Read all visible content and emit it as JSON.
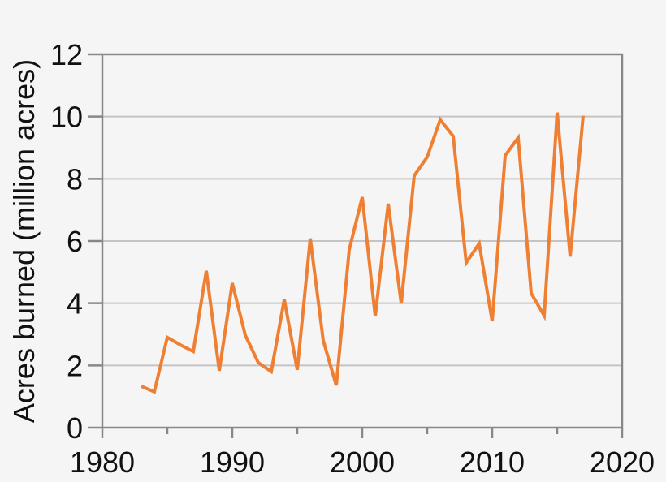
{
  "chart_data": {
    "type": "line",
    "title": "",
    "xlabel": "",
    "ylabel": "Acres burned (million acres)",
    "xlim": [
      1980,
      2020
    ],
    "ylim": [
      0,
      12
    ],
    "xticks": [
      1980,
      1990,
      2000,
      2010,
      2020
    ],
    "xminor_ticks": [
      1985,
      1995,
      2005,
      2015
    ],
    "yticks": [
      0,
      2,
      4,
      6,
      8,
      10,
      12
    ],
    "grid": "horizontal",
    "legend": null,
    "series": [
      {
        "name": "Acres burned",
        "color": "#ee7f33",
        "x": [
          1983,
          1984,
          1985,
          1986,
          1987,
          1988,
          1989,
          1990,
          1991,
          1992,
          1993,
          1994,
          1995,
          1996,
          1997,
          1998,
          1999,
          2000,
          2001,
          2002,
          2003,
          2004,
          2005,
          2006,
          2007,
          2008,
          2009,
          2010,
          2011,
          2012,
          2013,
          2014,
          2015,
          2016,
          2017
        ],
        "values": [
          1.33,
          1.15,
          2.9,
          2.66,
          2.45,
          5.04,
          1.83,
          4.65,
          2.97,
          2.09,
          1.8,
          4.12,
          1.86,
          6.08,
          2.8,
          1.36,
          5.72,
          7.41,
          3.58,
          7.2,
          3.99,
          8.1,
          8.7,
          9.9,
          9.37,
          5.3,
          5.92,
          3.42,
          8.75,
          9.32,
          4.32,
          3.6,
          10.13,
          5.5,
          10.03
        ]
      }
    ]
  },
  "colors": {
    "background": "#f5f5f5",
    "axis": "#888888",
    "grid": "#c4c4c4",
    "line": "#ee7f33",
    "text": "#111111"
  }
}
